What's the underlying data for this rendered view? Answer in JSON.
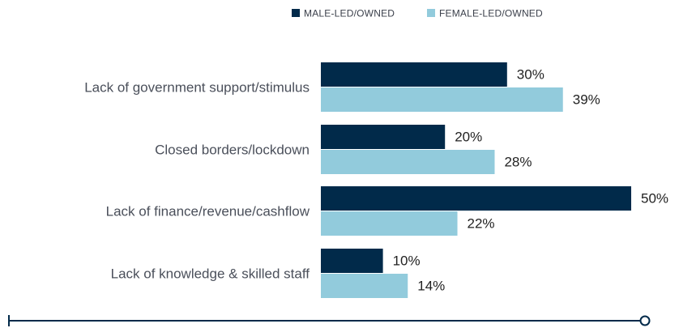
{
  "chart_data": {
    "type": "bar",
    "orientation": "horizontal",
    "categories": [
      "Lack of government support/stimulus",
      "Closed borders/lockdown",
      "Lack of finance/revenue/cashflow",
      "Lack of knowledge & skilled staff"
    ],
    "series": [
      {
        "name": "MALE-LED/OWNED",
        "values": [
          30,
          20,
          50,
          10
        ],
        "color": "#012a4a"
      },
      {
        "name": "FEMALE-LED/OWNED",
        "values": [
          39,
          28,
          22,
          14
        ],
        "color": "#92cbdc"
      }
    ],
    "value_suffix": "%",
    "xlim": [
      0,
      50
    ],
    "legend_position": "top",
    "grid": false
  },
  "colors": {
    "axis_line": "#012a4a"
  }
}
